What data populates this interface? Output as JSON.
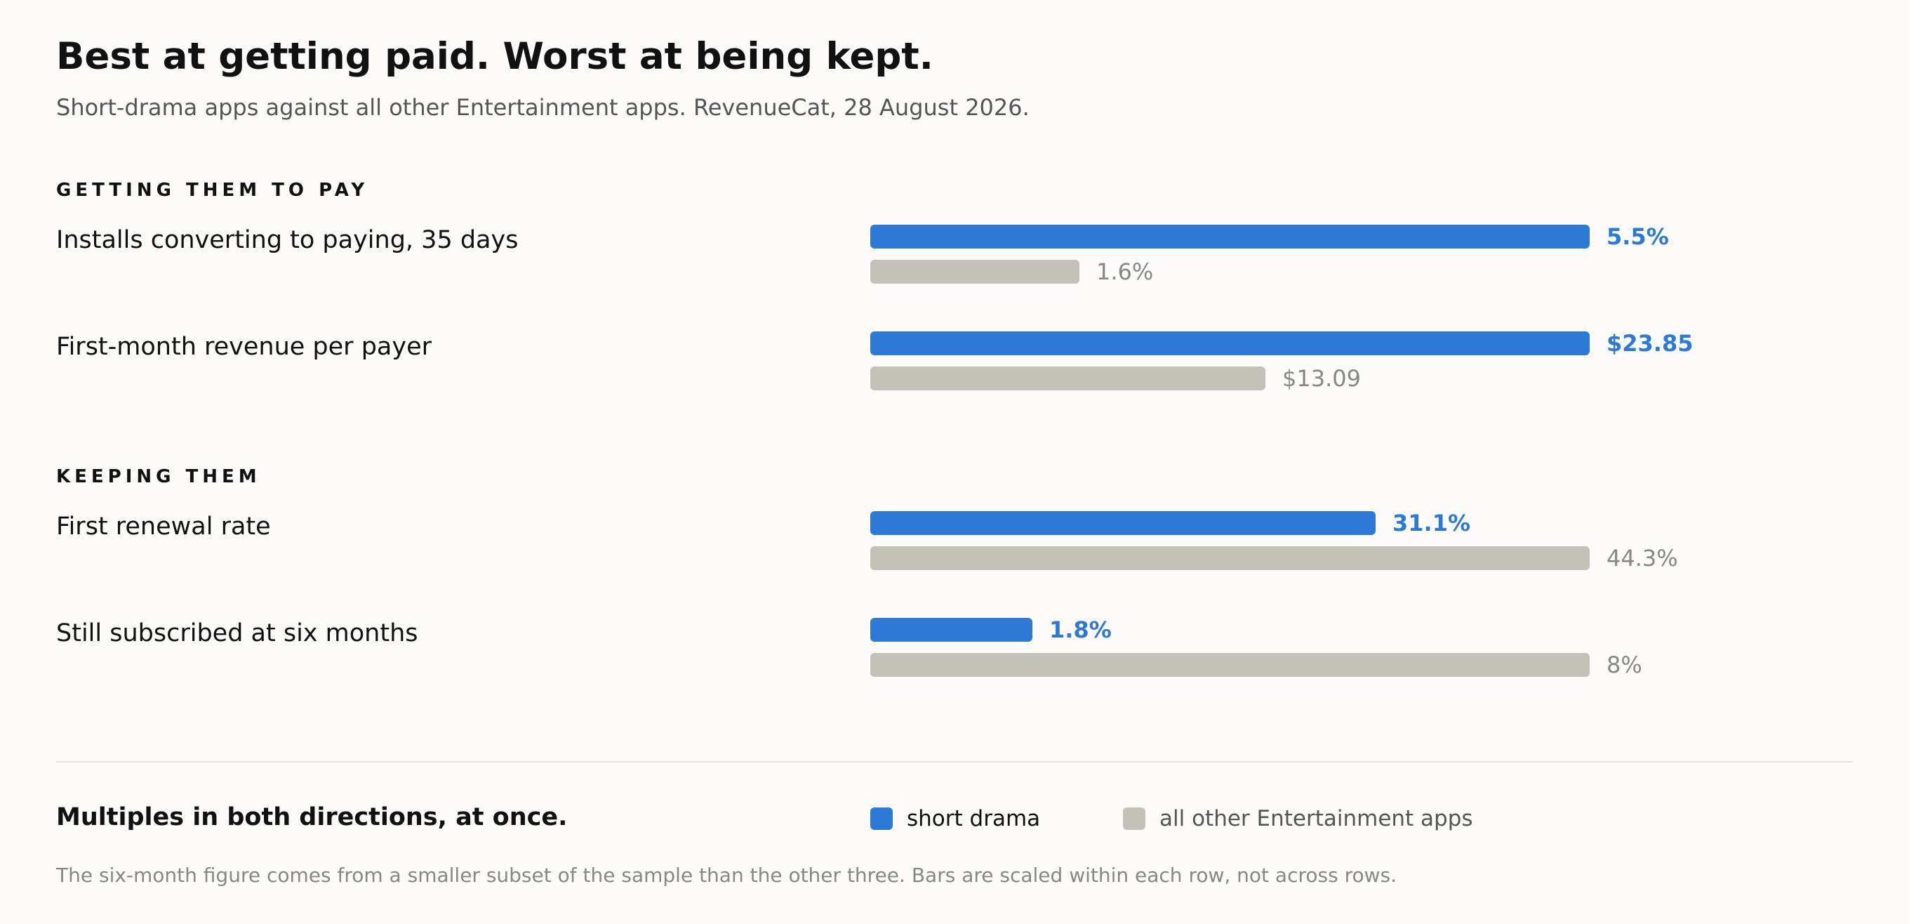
{
  "title": "Best at getting paid. Worst at being kept.",
  "subtitle": "Short-drama apps against all other Entertainment apps. RevenueCat, 28 August 2026.",
  "takeaway": "Multiples in both directions, at once.",
  "footnote": "The six-month figure comes from a smaller subset of the sample than the other three. Bars are scaled within each row, not across rows.",
  "colors": {
    "short_drama": "#2d7ad6",
    "other": "#c4c1b8"
  },
  "chart_data": {
    "type": "bar",
    "orientation": "horizontal",
    "scaling": "within each row",
    "legend": [
      {
        "key": "short_drama",
        "label": "short drama",
        "color": "#2d7ad6"
      },
      {
        "key": "other",
        "label": "all other Entertainment apps",
        "color": "#c4c1b8"
      }
    ],
    "sections": [
      {
        "heading": "GETTING THEM TO PAY",
        "rows": [
          {
            "label": "Installs converting to paying, 35 days",
            "short_drama": 5.5,
            "other": 1.6,
            "short_drama_label": "5.5%",
            "other_label": "1.6%"
          },
          {
            "label": "First-month revenue per payer",
            "short_drama": 23.85,
            "other": 13.09,
            "short_drama_label": "$23.85",
            "other_label": "$13.09"
          }
        ]
      },
      {
        "heading": "KEEPING THEM",
        "rows": [
          {
            "label": "First renewal rate",
            "short_drama": 31.1,
            "other": 44.3,
            "short_drama_label": "31.1%",
            "other_label": "44.3%"
          },
          {
            "label": "Still subscribed at six months",
            "short_drama": 1.8,
            "other": 8,
            "short_drama_label": "1.8%",
            "other_label": "8%"
          }
        ]
      }
    ]
  }
}
